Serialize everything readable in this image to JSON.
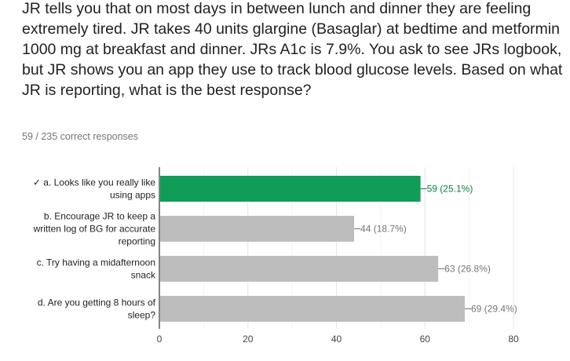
{
  "question": "JR tells you that on most days in between lunch and dinner they are feeling extremely tired. JR takes 40 units glargine (Basaglar) at bedtime and metformin 1000 mg at breakfast and dinner. JRs A1c is 7.9%. You ask to see JRs logbook, but JR shows you an app they use to track blood glucose levels. Based on what JR is reporting, what is the best response?",
  "summary": "59 / 235 correct responses",
  "chart_data": {
    "type": "bar",
    "orientation": "horizontal",
    "categories": [
      [
        "✓ a. Looks like you really like",
        "using apps"
      ],
      [
        "b. Encourage JR to keep a",
        "written log of BG for accurate",
        "reporting"
      ],
      [
        "c. Try having a midafternoon",
        "snack"
      ],
      [
        "d. Are you getting 8 hours of",
        "sleep?"
      ]
    ],
    "values": [
      59,
      44,
      63,
      69
    ],
    "labels": [
      "59 (25.1%)",
      "44 (18.7%)",
      "63 (26.8%)",
      "69 (29.4%)"
    ],
    "correct": [
      true,
      false,
      false,
      false
    ],
    "xlim": [
      0,
      80
    ],
    "xticks": [
      0,
      20,
      40,
      60,
      80
    ],
    "colors": {
      "correct": "#0f9d58",
      "other": "#bdbdbd",
      "correct_label": "#0b8043",
      "other_label": "#757575"
    }
  }
}
